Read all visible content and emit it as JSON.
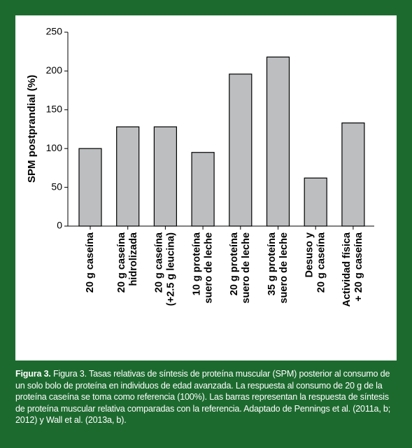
{
  "chart_data": {
    "type": "bar",
    "y_label": "SPM postprandial (%)",
    "categories": [
      [
        "20 g caseína"
      ],
      [
        "20 g caseína",
        "hidrolizada"
      ],
      [
        "20 g caseína",
        "(+2.5 g leucina)"
      ],
      [
        "10 g proteína",
        "suero de leche"
      ],
      [
        "20 g proteína",
        "suero de leche"
      ],
      [
        "35 g proteína",
        "suero de leche"
      ],
      [
        "Desuso y",
        "20 g caseína"
      ],
      [
        "Actividad física",
        "+ 20 g caseína"
      ]
    ],
    "values": [
      100,
      128,
      128,
      95,
      196,
      218,
      62,
      133
    ],
    "color": "#bcbec0",
    "ylim": [
      0,
      250
    ],
    "yticks": [
      0,
      50,
      100,
      150,
      200,
      250
    ],
    "grid": false
  },
  "caption": {
    "label": "Figura 3.",
    "text": "Figura 3. Tasas relativas de síntesis de proteína muscular (SPM) posterior al consumo de un solo bolo de proteína en individuos de edad avanzada. La respuesta al consumo de 20 g de la proteína caseína se toma como referencia (100%). Las barras representan la respuesta de síntesis de proteína muscular relativa comparadas con la referencia. Adaptado de Pennings et al. (2011a, b; 2012) y Wall et al. (2013a, b)."
  }
}
